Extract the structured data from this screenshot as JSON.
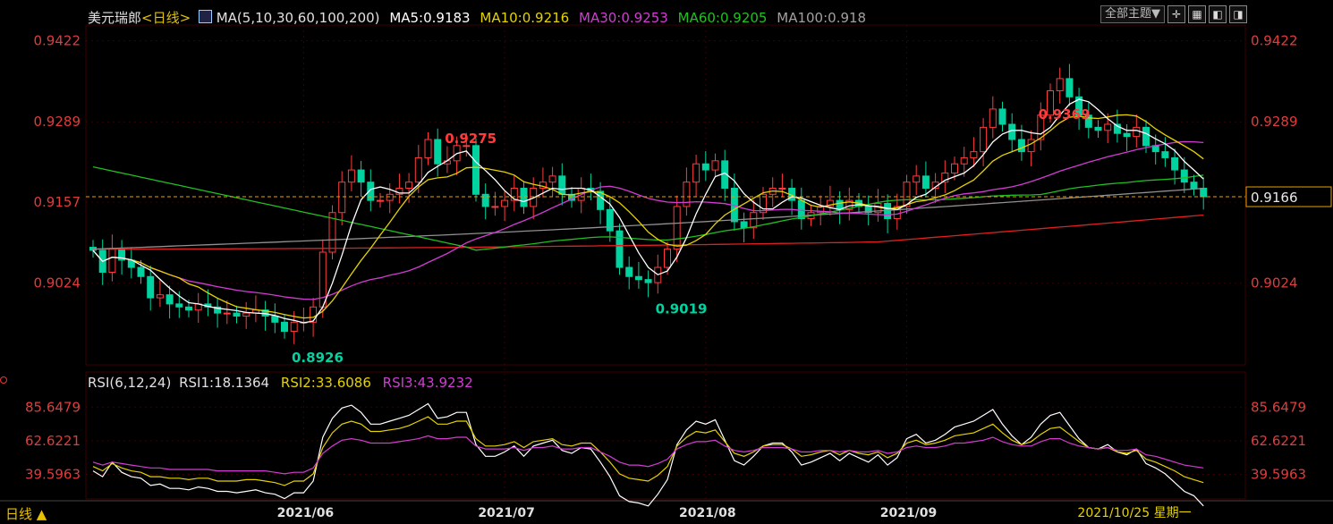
{
  "header": {
    "symbol": "美元瑞郎",
    "period_tag": "<日线>",
    "ma_label": "MA(5,10,30,60,100,200)",
    "ma5": "MA5:0.9183",
    "ma10": "MA10:0.9216",
    "ma30": "MA30:0.9253",
    "ma60": "MA60:0.9205",
    "ma100": "MA100:0.918"
  },
  "toolbar": {
    "theme_label": "全部主题▼"
  },
  "rsi_header": {
    "label": "RSI(6,12,24)",
    "rsi1": "RSI1:18.1364",
    "rsi2": "RSI2:33.6086",
    "rsi3": "RSI3:43.9232"
  },
  "footer": {
    "period_label": "日线 ▲",
    "date_label": "2021/10/25 星期一"
  },
  "colors": {
    "up": "#ff3b3b",
    "down": "#00d2a0",
    "ma5": "#ffffff",
    "ma10": "#e6d200",
    "ma30": "#d23cd2",
    "ma60": "#20c020",
    "ma100": "#909090",
    "ma200": "#e02020",
    "axis_text": "#e03c3c",
    "grid": "#3a0000"
  },
  "chart_data": [
    {
      "type": "candlestick",
      "title": "美元瑞郎<日线>",
      "y_ticks": [
        0.9422,
        0.9289,
        0.9157,
        0.9024
      ],
      "ylim": [
        0.889,
        0.9445
      ],
      "x_tick_labels": [
        "2021/06",
        "2021/07",
        "2021/08",
        "2021/09"
      ],
      "x_tick_index": [
        22,
        43,
        64,
        85
      ],
      "last_price": "0.9166",
      "annotations": [
        {
          "label": "0.9369",
          "index": 98,
          "kind": "high"
        },
        {
          "label": "0.9275",
          "index": 36,
          "kind": "high"
        },
        {
          "label": "0.9019",
          "index": 58,
          "kind": "low"
        },
        {
          "label": "0.8926",
          "index": 20,
          "kind": "low"
        }
      ],
      "closes": [
        0.9078,
        0.9042,
        0.908,
        0.9062,
        0.905,
        0.9035,
        0.9,
        0.9005,
        0.899,
        0.8985,
        0.898,
        0.899,
        0.8985,
        0.8975,
        0.8975,
        0.897,
        0.8975,
        0.898,
        0.897,
        0.896,
        0.8945,
        0.896,
        0.896,
        0.8985,
        0.9075,
        0.914,
        0.919,
        0.921,
        0.919,
        0.916,
        0.916,
        0.917,
        0.918,
        0.919,
        0.923,
        0.926,
        0.922,
        0.9225,
        0.925,
        0.925,
        0.917,
        0.915,
        0.915,
        0.916,
        0.918,
        0.915,
        0.918,
        0.919,
        0.92,
        0.917,
        0.916,
        0.918,
        0.9175,
        0.9145,
        0.911,
        0.905,
        0.9035,
        0.903,
        0.9025,
        0.905,
        0.908,
        0.915,
        0.919,
        0.922,
        0.921,
        0.9225,
        0.918,
        0.9125,
        0.9115,
        0.914,
        0.917,
        0.918,
        0.918,
        0.916,
        0.913,
        0.914,
        0.915,
        0.916,
        0.9145,
        0.916,
        0.915,
        0.914,
        0.9155,
        0.913,
        0.915,
        0.919,
        0.92,
        0.918,
        0.919,
        0.9205,
        0.922,
        0.923,
        0.924,
        0.928,
        0.931,
        0.9285,
        0.926,
        0.924,
        0.926,
        0.93,
        0.934,
        0.936,
        0.933,
        0.93,
        0.928,
        0.9275,
        0.9285,
        0.927,
        0.9265,
        0.928,
        0.925,
        0.924,
        0.923,
        0.921,
        0.919,
        0.918,
        0.9166
      ],
      "rsi": [
        {
          "name": "RSI1",
          "values": [
            42,
            38,
            48,
            41,
            38,
            37,
            32,
            33,
            30,
            30,
            29,
            31,
            30,
            28,
            28,
            27,
            28,
            29,
            27,
            26,
            23,
            27,
            27,
            35,
            65,
            78,
            85,
            87,
            82,
            74,
            74,
            76,
            78,
            80,
            84,
            88,
            78,
            79,
            82,
            82,
            60,
            52,
            52,
            55,
            59,
            52,
            59,
            61,
            63,
            56,
            54,
            58,
            57,
            48,
            38,
            25,
            21,
            20,
            18,
            26,
            36,
            60,
            70,
            76,
            74,
            77,
            63,
            49,
            46,
            52,
            59,
            61,
            61,
            55,
            46,
            48,
            51,
            54,
            49,
            54,
            51,
            48,
            53,
            46,
            51,
            64,
            67,
            61,
            63,
            67,
            72,
            74,
            76,
            80,
            84,
            74,
            66,
            60,
            65,
            74,
            80,
            82,
            73,
            64,
            58,
            57,
            60,
            55,
            53,
            57,
            47,
            44,
            40,
            34,
            28,
            25,
            18
          ]
        },
        {
          "name": "RSI2",
          "values": [
            45,
            42,
            47,
            44,
            42,
            41,
            38,
            38,
            37,
            37,
            36,
            37,
            37,
            35,
            35,
            35,
            36,
            36,
            35,
            34,
            32,
            35,
            35,
            40,
            58,
            68,
            74,
            76,
            74,
            69,
            69,
            70,
            71,
            73,
            76,
            79,
            74,
            74,
            76,
            76,
            64,
            59,
            59,
            60,
            62,
            58,
            62,
            63,
            64,
            60,
            59,
            61,
            61,
            55,
            48,
            40,
            37,
            36,
            35,
            39,
            45,
            59,
            65,
            69,
            68,
            70,
            62,
            54,
            52,
            55,
            59,
            60,
            60,
            57,
            52,
            53,
            55,
            56,
            53,
            56,
            54,
            53,
            55,
            51,
            54,
            61,
            63,
            60,
            61,
            63,
            66,
            67,
            68,
            71,
            74,
            68,
            63,
            60,
            62,
            67,
            71,
            72,
            67,
            62,
            58,
            57,
            58,
            55,
            54,
            56,
            50,
            48,
            45,
            42,
            38,
            36,
            34
          ]
        },
        {
          "name": "RSI3",
          "values": [
            48,
            46,
            48,
            47,
            46,
            45,
            44,
            44,
            43,
            43,
            43,
            43,
            43,
            42,
            42,
            42,
            42,
            42,
            42,
            41,
            40,
            41,
            41,
            44,
            54,
            59,
            63,
            64,
            63,
            61,
            61,
            61,
            62,
            63,
            64,
            66,
            64,
            64,
            65,
            65,
            59,
            57,
            57,
            57,
            58,
            56,
            58,
            58,
            59,
            57,
            57,
            58,
            58,
            55,
            52,
            48,
            46,
            46,
            45,
            47,
            50,
            57,
            60,
            62,
            62,
            63,
            59,
            56,
            55,
            56,
            58,
            58,
            58,
            57,
            55,
            55,
            56,
            56,
            55,
            56,
            55,
            55,
            56,
            54,
            55,
            58,
            59,
            58,
            58,
            59,
            61,
            61,
            62,
            63,
            65,
            62,
            60,
            59,
            59,
            62,
            64,
            64,
            61,
            59,
            58,
            57,
            58,
            56,
            56,
            57,
            53,
            52,
            50,
            48,
            46,
            45,
            44
          ]
        }
      ],
      "rsi_ticks": [
        85.6479,
        62.6221,
        39.5963
      ],
      "rsi_ylim": [
        24,
        95
      ]
    }
  ]
}
